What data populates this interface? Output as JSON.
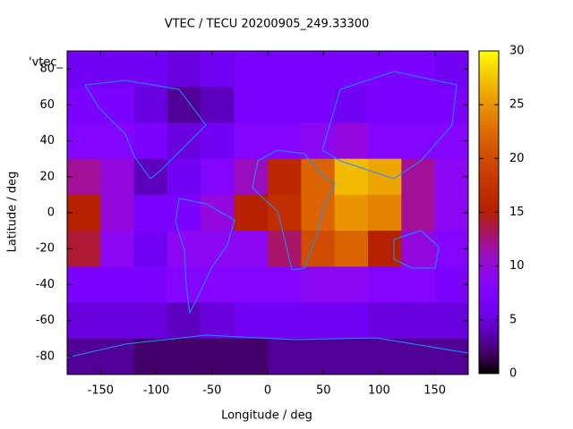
{
  "chart_data": {
    "type": "heatmap",
    "title": "VTEC / TECU 20200905_249.33300",
    "x_label": "Longitude / deg",
    "y_label": "Latitude / deg",
    "key_label": "'vtec_",
    "x": [
      -165,
      -135,
      -105,
      -75,
      -45,
      -15,
      15,
      45,
      75,
      105,
      135,
      165
    ],
    "y": [
      80,
      60,
      40,
      20,
      0,
      -20,
      -40,
      -60,
      -80
    ],
    "z": [
      [
        6,
        6,
        6,
        5,
        6,
        7,
        7,
        7,
        7,
        7,
        7,
        6
      ],
      [
        7,
        7,
        5,
        3,
        4,
        7,
        7,
        7,
        6,
        7,
        7,
        7
      ],
      [
        8,
        8,
        7,
        5,
        6,
        8,
        8,
        9,
        10,
        8,
        8,
        8
      ],
      [
        12,
        10,
        4,
        6,
        8,
        11,
        16,
        22,
        27,
        26,
        12,
        9
      ],
      [
        15,
        10,
        7,
        7,
        10,
        15,
        17,
        22,
        25,
        24,
        12,
        9
      ],
      [
        14,
        9,
        6,
        9,
        9,
        9,
        13,
        20,
        22,
        15,
        10,
        8
      ],
      [
        7,
        7,
        7,
        8,
        8,
        8,
        8,
        9,
        9,
        8,
        8,
        7
      ],
      [
        5,
        5,
        5,
        4,
        5,
        6,
        6,
        6,
        6,
        5,
        5,
        5
      ],
      [
        3,
        3,
        2,
        2,
        2,
        2,
        3,
        3,
        3,
        3,
        3,
        3
      ]
    ],
    "xlim": [
      -180,
      180
    ],
    "ylim": [
      -90,
      90
    ],
    "xticks": [
      -150,
      -100,
      -50,
      0,
      50,
      100,
      150
    ],
    "yticks": [
      -80,
      -60,
      -40,
      -20,
      0,
      20,
      40,
      60,
      80
    ],
    "cblim": [
      0,
      30
    ],
    "cbticks": [
      0,
      5,
      10,
      15,
      20,
      25,
      30
    ],
    "outline_color": "#1e90ff"
  }
}
